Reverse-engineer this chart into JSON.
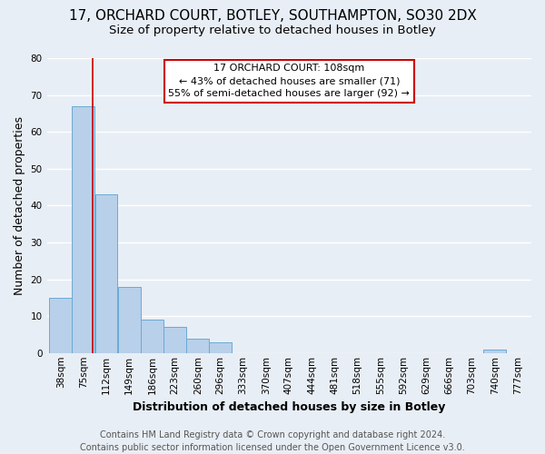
{
  "title": "17, ORCHARD COURT, BOTLEY, SOUTHAMPTON, SO30 2DX",
  "subtitle": "Size of property relative to detached houses in Botley",
  "xlabel": "Distribution of detached houses by size in Botley",
  "ylabel": "Number of detached properties",
  "bin_labels": [
    "38sqm",
    "75sqm",
    "112sqm",
    "149sqm",
    "186sqm",
    "223sqm",
    "260sqm",
    "296sqm",
    "333sqm",
    "370sqm",
    "407sqm",
    "444sqm",
    "481sqm",
    "518sqm",
    "555sqm",
    "592sqm",
    "629sqm",
    "666sqm",
    "703sqm",
    "740sqm",
    "777sqm"
  ],
  "bin_edges": [
    38,
    75,
    112,
    149,
    186,
    223,
    260,
    296,
    333,
    370,
    407,
    444,
    481,
    518,
    555,
    592,
    629,
    666,
    703,
    740,
    777
  ],
  "bar_heights": [
    15,
    67,
    43,
    18,
    9,
    7,
    4,
    3,
    0,
    0,
    0,
    0,
    0,
    0,
    0,
    0,
    0,
    0,
    0,
    1,
    0
  ],
  "bar_color": "#b8d0ea",
  "bar_edge_color": "#6aaad4",
  "property_size": 108,
  "vline_color": "#cc0000",
  "annotation_text_line1": "17 ORCHARD COURT: 108sqm",
  "annotation_text_line2": "← 43% of detached houses are smaller (71)",
  "annotation_text_line3": "55% of semi-detached houses are larger (92) →",
  "annotation_box_facecolor": "#ffffff",
  "annotation_box_edgecolor": "#cc0000",
  "ylim": [
    0,
    80
  ],
  "yticks": [
    0,
    10,
    20,
    30,
    40,
    50,
    60,
    70,
    80
  ],
  "footer_line1": "Contains HM Land Registry data © Crown copyright and database right 2024.",
  "footer_line2": "Contains public sector information licensed under the Open Government Licence v3.0.",
  "fig_background_color": "#e8eef5",
  "plot_background_color": "#e8eef5",
  "grid_color": "#ffffff",
  "title_fontsize": 11,
  "subtitle_fontsize": 9.5,
  "axis_label_fontsize": 9,
  "tick_fontsize": 7.5,
  "footer_fontsize": 7,
  "annotation_fontsize": 8
}
